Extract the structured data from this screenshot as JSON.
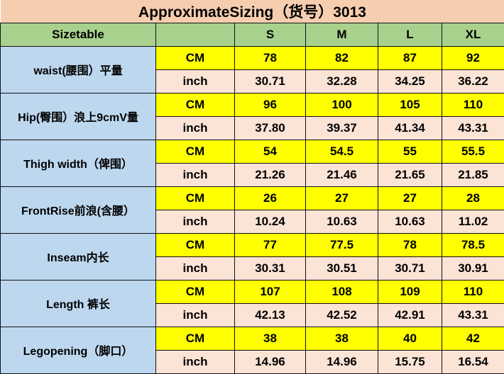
{
  "title": "ApproximateSizing（货号）3013",
  "header": {
    "label": "Sizetable",
    "unit": "",
    "sizes": [
      "S",
      "M",
      "L",
      "XL"
    ]
  },
  "rows": [
    {
      "label": "waist(腰围）平量",
      "cm_label": "CM",
      "inch_label": "inch",
      "cm": [
        "78",
        "82",
        "87",
        "92"
      ],
      "inch": [
        "30.71",
        "32.28",
        "34.25",
        "36.22"
      ]
    },
    {
      "label": "Hip(臀围）浪上9cmV量",
      "cm_label": "CM",
      "inch_label": "inch",
      "cm": [
        "96",
        "100",
        "105",
        "110"
      ],
      "inch": [
        "37.80",
        "39.37",
        "41.34",
        "43.31"
      ]
    },
    {
      "label": "Thigh width（俾围）",
      "cm_label": "CM",
      "inch_label": "inch",
      "cm": [
        "54",
        "54.5",
        "55",
        "55.5"
      ],
      "inch": [
        "21.26",
        "21.46",
        "21.65",
        "21.85"
      ]
    },
    {
      "label": "FrontRise前浪(含腰）",
      "cm_label": "CM",
      "inch_label": "inch",
      "cm": [
        "26",
        "27",
        "27",
        "28"
      ],
      "inch": [
        "10.24",
        "10.63",
        "10.63",
        "11.02"
      ]
    },
    {
      "label": "Inseam内长",
      "cm_label": "CM",
      "inch_label": "inch",
      "cm": [
        "77",
        "77.5",
        "78",
        "78.5"
      ],
      "inch": [
        "30.31",
        "30.51",
        "30.71",
        "30.91"
      ]
    },
    {
      "label": "Length 裤长",
      "cm_label": "CM",
      "inch_label": "inch",
      "cm": [
        "107",
        "108",
        "109",
        "110"
      ],
      "inch": [
        "42.13",
        "42.52",
        "42.91",
        "43.31"
      ]
    },
    {
      "label": "Legopening（脚口）",
      "cm_label": "CM",
      "inch_label": "inch",
      "cm": [
        "38",
        "38",
        "40",
        "42"
      ],
      "inch": [
        "14.96",
        "14.96",
        "15.75",
        "16.54"
      ]
    }
  ],
  "colors": {
    "title_bg": "#f7cdb0",
    "header_bg": "#a9d18e",
    "label_bg": "#bdd7ee",
    "cm_bg": "#ffff00",
    "inch_bg": "#fbe3d6"
  }
}
